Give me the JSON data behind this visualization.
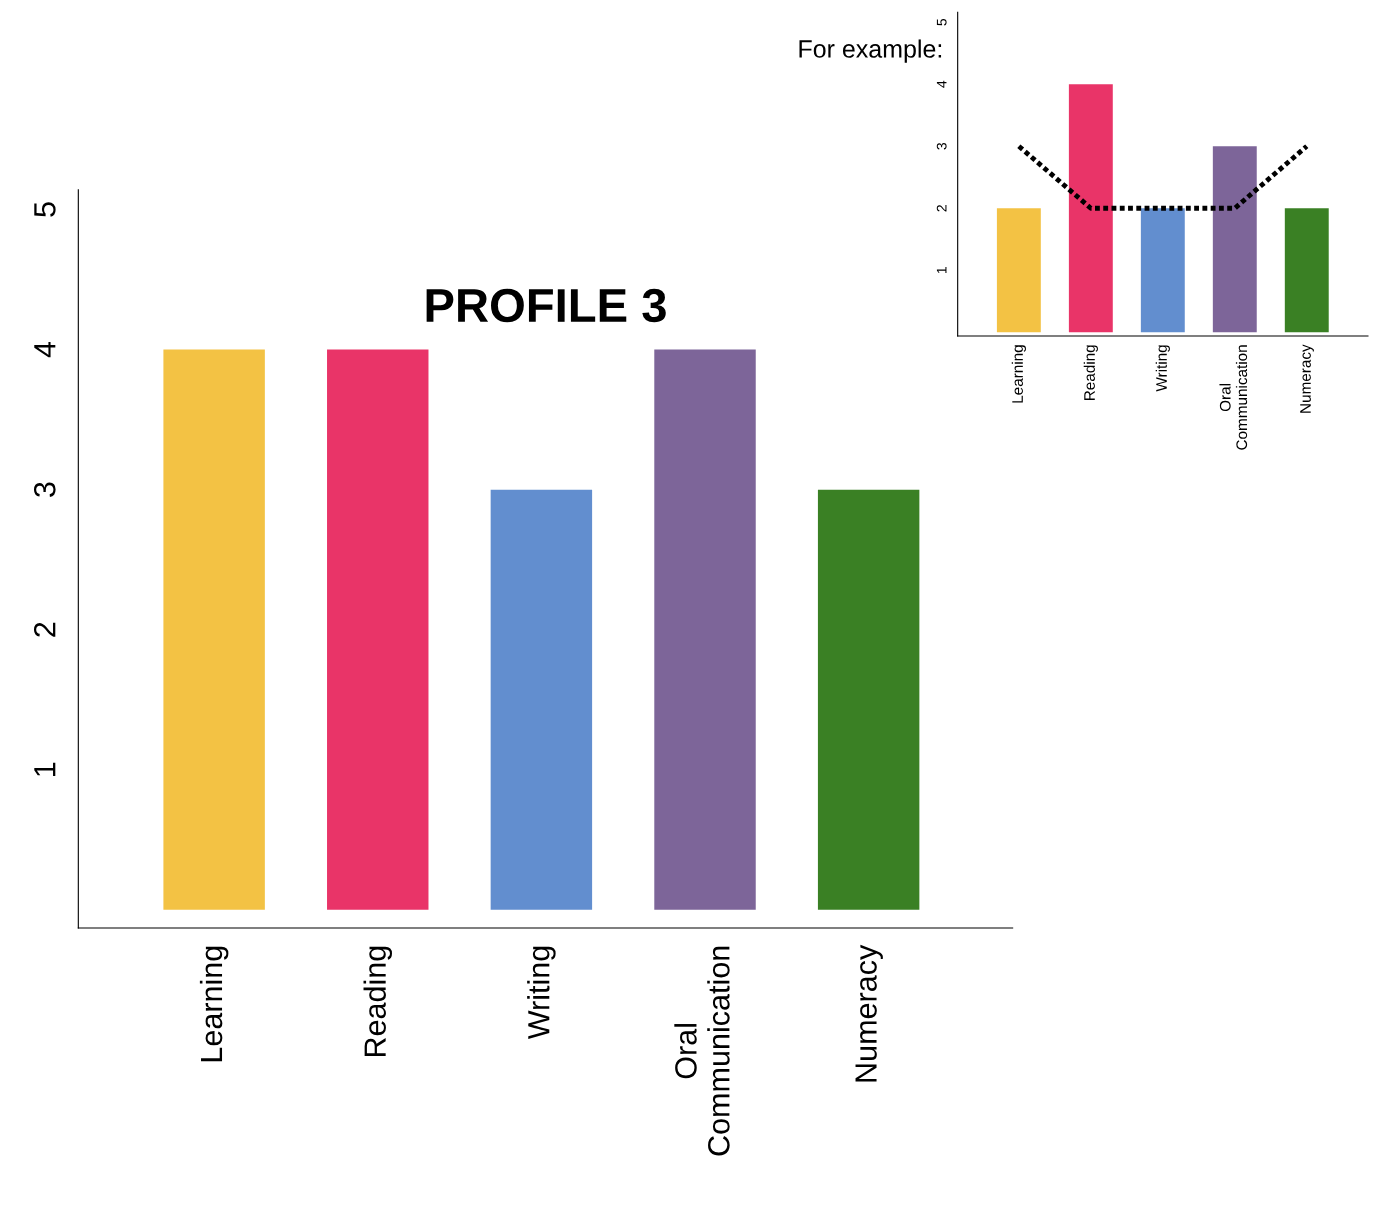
{
  "chart_data": [
    {
      "type": "bar",
      "title": "PROFILE 3",
      "categories": [
        "Learning",
        "Reading",
        "Writing",
        "Oral\nCommunication",
        "Numeracy"
      ],
      "values": [
        4,
        4,
        3,
        4,
        3
      ],
      "colors": [
        "#f3c244",
        "#e93468",
        "#628ecf",
        "#7d6599",
        "#3a8024"
      ],
      "ylim": [
        -0.13,
        5.14
      ],
      "yticks": [
        1,
        2,
        3,
        4,
        5
      ],
      "grid": false,
      "legend": false
    },
    {
      "type": "bar",
      "annotations": [
        "For example:"
      ],
      "categories": [
        "Learning",
        "Reading",
        "Writing",
        "Oral\nCommunication",
        "Numeracy"
      ],
      "series": [
        {
          "type": "bar",
          "values": [
            2,
            4,
            2,
            3,
            2
          ],
          "colors": [
            "#f3c244",
            "#e93468",
            "#628ecf",
            "#7d6599",
            "#3a8024"
          ]
        },
        {
          "type": "line",
          "values": [
            3,
            2,
            2,
            2,
            3
          ],
          "color": "#000000",
          "line_style": "dotted",
          "marker": "none"
        }
      ],
      "ylim": [
        -0.06,
        5.16
      ],
      "yticks": [
        1,
        2,
        3,
        4,
        5
      ],
      "grid": false,
      "legend": false
    }
  ]
}
